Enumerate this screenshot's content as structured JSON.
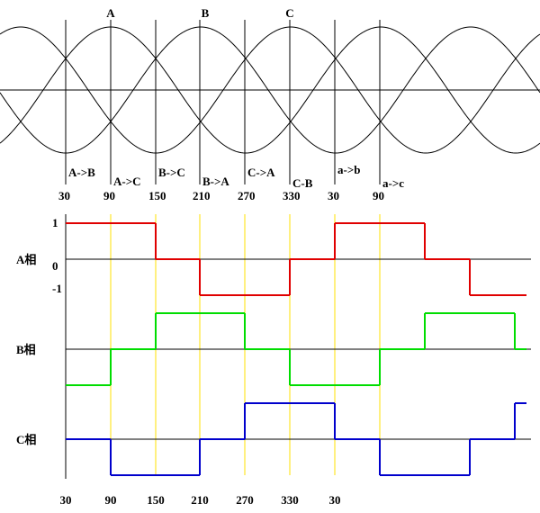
{
  "top": {
    "phase_labels": [
      "A",
      "B",
      "C"
    ],
    "intervals": [
      "A->B",
      "A->C",
      "B->C",
      "B->A",
      "C->A",
      "C-B",
      "a->b",
      "a->c"
    ],
    "angles": [
      "30",
      "90",
      "150",
      "210",
      "270",
      "330",
      "30",
      "90"
    ]
  },
  "bottom": {
    "level_labels": [
      "1",
      "0",
      "-1"
    ],
    "phases": [
      {
        "name": "A相",
        "color": "#e00000",
        "levels": [
          1,
          1,
          0,
          -1,
          -1,
          0,
          1,
          1,
          0,
          -1,
          -1
        ]
      },
      {
        "name": "B相",
        "color": "#00dd00",
        "levels": [
          -1,
          0,
          1,
          1,
          0,
          -1,
          -1,
          0,
          1,
          1,
          0
        ]
      },
      {
        "name": "C相",
        "color": "#0000cc",
        "levels": [
          0,
          -1,
          -1,
          0,
          1,
          1,
          0,
          -1,
          -1,
          0,
          1
        ]
      }
    ],
    "angles": [
      "30",
      "90",
      "150",
      "210",
      "270",
      "330",
      "30"
    ]
  }
}
